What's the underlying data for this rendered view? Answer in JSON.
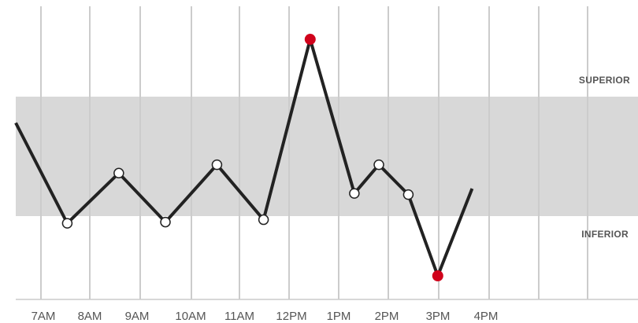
{
  "chart_data": {
    "type": "line",
    "title": "",
    "xlabel": "",
    "ylabel": "",
    "x_ticks": [
      "7AM",
      "8AM",
      "9AM",
      "10AM",
      "11AM",
      "12PM",
      "1PM",
      "2PM",
      "3PM",
      "4PM"
    ],
    "band": {
      "upper": 100,
      "lower": 0,
      "upper_label": "SUPERIOR",
      "lower_label": "INFERIOR"
    },
    "ylim": [
      -50,
      152
    ],
    "xlim": [
      6.6,
      19.8
    ],
    "series": [
      {
        "points": [
          {
            "x": 6.6,
            "y": 78
          },
          {
            "x": 7.65,
            "y": -6
          },
          {
            "x": 8.7,
            "y": 36
          },
          {
            "x": 9.65,
            "y": -5
          },
          {
            "x": 10.7,
            "y": 43
          },
          {
            "x": 11.65,
            "y": -3
          },
          {
            "x": 12.6,
            "y": 148,
            "flag": "high"
          },
          {
            "x": 13.5,
            "y": 19
          },
          {
            "x": 14.0,
            "y": 43
          },
          {
            "x": 14.6,
            "y": 18
          },
          {
            "x": 15.2,
            "y": -50,
            "flag": "low"
          },
          {
            "x": 15.9,
            "y": 23
          }
        ],
        "color": "#222222"
      }
    ],
    "colors": {
      "band": "#d8d8d8",
      "grid": "#cccccc",
      "normal_marker": "#ffffff",
      "alert_marker": "#d0021b"
    },
    "grid": true
  }
}
